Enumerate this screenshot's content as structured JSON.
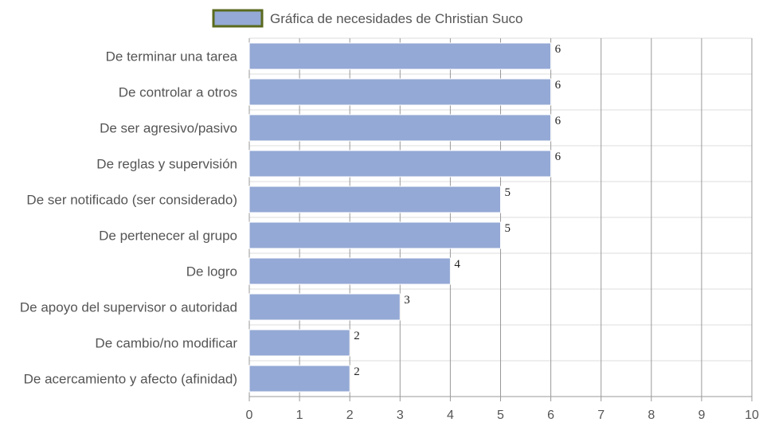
{
  "chart_data": {
    "type": "bar",
    "orientation": "horizontal",
    "categories": [
      "De terminar una tarea",
      "De controlar a otros",
      "De ser agresivo/pasivo",
      "De reglas y supervisión",
      "De ser notificado (ser considerado)",
      "De pertenecer al grupo",
      "De logro",
      "De apoyo del supervisor o autoridad",
      "De cambio/no modificar",
      "De acercamiento y afecto (afinidad)"
    ],
    "series": [
      {
        "name": "Gráfica de necesidades de Christian Suco",
        "values": [
          6,
          6,
          6,
          6,
          5,
          5,
          4,
          3,
          2,
          2
        ]
      }
    ],
    "xlim": [
      0,
      10
    ],
    "x_ticks": [
      "0",
      "1",
      "2",
      "3",
      "4",
      "5",
      "6",
      "7",
      "8",
      "9",
      "10"
    ],
    "grid": true,
    "legend_position": "top",
    "colors": {
      "bar": "#94a9d5",
      "bar_border": "#ffffff",
      "legend_border": "#5a6a1e",
      "grid_vertical": "#999999",
      "grid_horizontal": "#dddddd"
    }
  }
}
